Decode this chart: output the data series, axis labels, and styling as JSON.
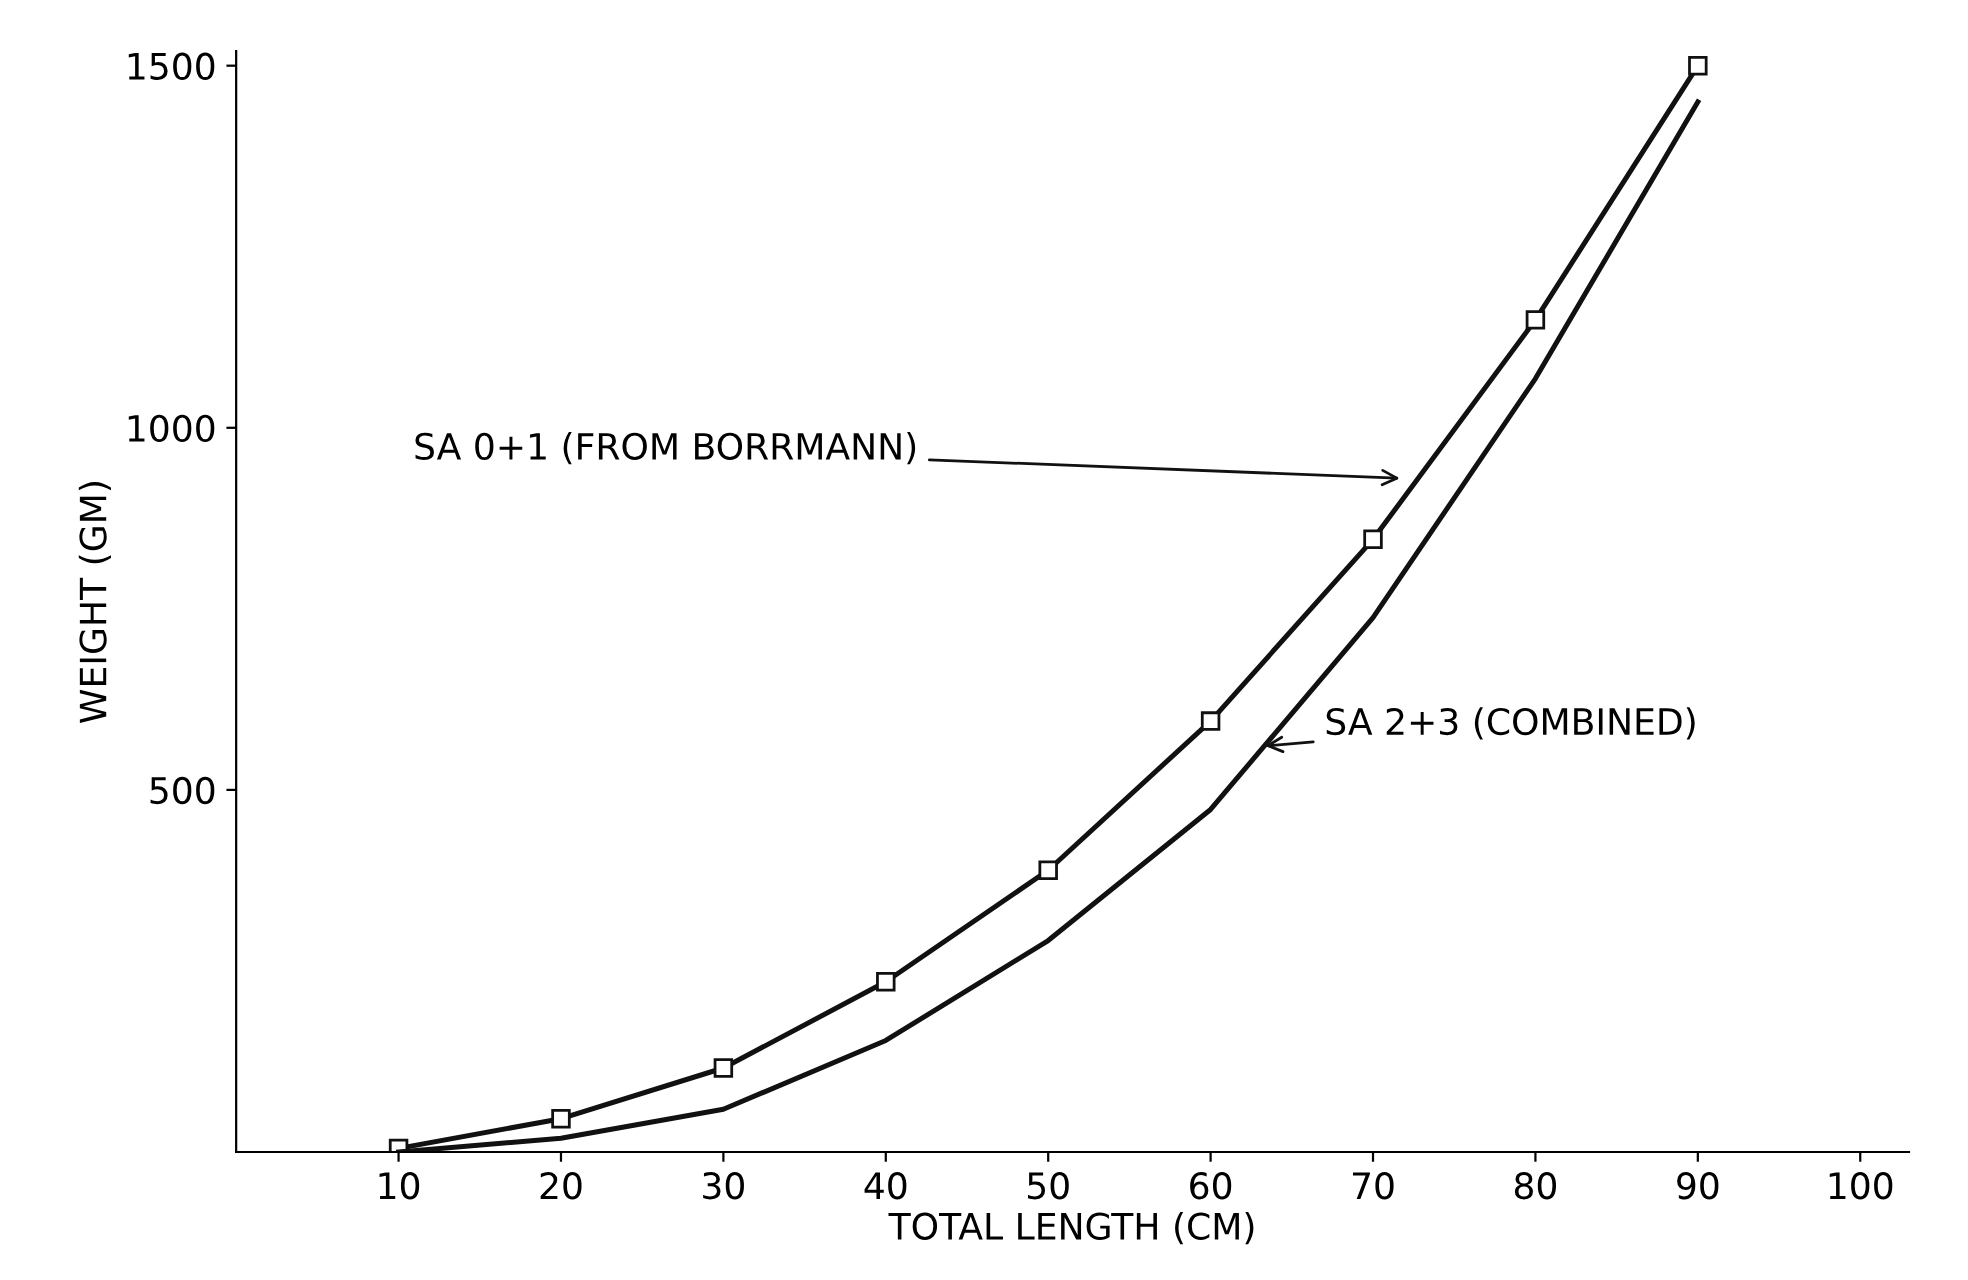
{
  "chart_data": {
    "type": "line",
    "xlabel": "TOTAL LENGTH (CM)",
    "ylabel": "WEIGHT (GM)",
    "x": [
      10,
      20,
      30,
      40,
      50,
      60,
      70,
      80,
      90
    ],
    "series": [
      {
        "color": "#111111",
        "marker": "square",
        "values": [
          5,
          46,
          116,
          235,
          389,
          595,
          846,
          1149,
          1500
        ]
      },
      {
        "color": "#111111",
        "marker": "none",
        "values": [
          0,
          19,
          59,
          154,
          292,
          473,
          738,
          1068,
          1450
        ]
      }
    ],
    "xlim": [
      0,
      103
    ],
    "ylim": [
      0,
      1520
    ],
    "xticks": [
      10,
      20,
      30,
      40,
      50,
      60,
      70,
      80,
      90,
      100
    ],
    "yticks": [
      500,
      1000,
      1500
    ],
    "grid": false,
    "legend": false,
    "line_style": "solid",
    "annotations": [
      {
        "text": "SA 0+1 (FROM BORRMANN)",
        "x": 72,
        "y": 930
      },
      {
        "text": "SA 2+3 (COMBINED)",
        "x": 63,
        "y": 560
      }
    ]
  }
}
